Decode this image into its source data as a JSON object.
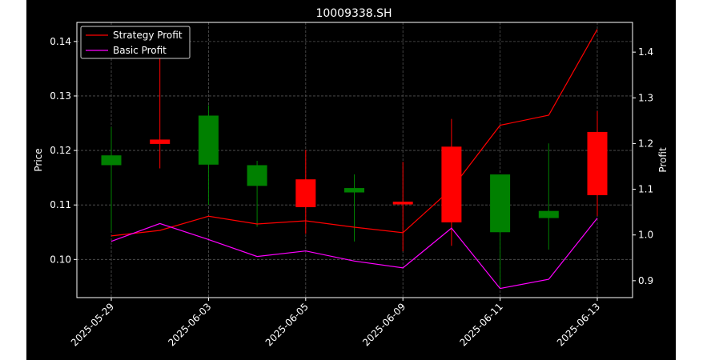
{
  "chart_data": {
    "type": "candlestick",
    "title": "10009338.SH",
    "xlabel": "",
    "ylabel": "Price",
    "y2label": "Profit",
    "ylim": [
      0.093,
      0.1435
    ],
    "y2lim": [
      0.863,
      1.465
    ],
    "yticks": [
      0.1,
      0.11,
      0.12,
      0.13,
      0.14
    ],
    "ytick_labels": [
      "0.10",
      "0.11",
      "0.12",
      "0.13",
      "0.14"
    ],
    "y2ticks": [
      0.9,
      1.0,
      1.1,
      1.2,
      1.3,
      1.4
    ],
    "y2tick_labels": [
      "0.9",
      "1.0",
      "1.1",
      "1.2",
      "1.3",
      "1.4"
    ],
    "x_tick_labels": [
      "2025-05-29",
      "2025-06-03",
      "2025-06-05",
      "2025-06-09",
      "2025-06-11",
      "2025-06-13"
    ],
    "x_tick_indices": [
      0,
      2,
      4,
      6,
      8,
      10
    ],
    "grid": true,
    "legend_position": "top-left",
    "up_color": "#008000",
    "down_color": "#ff0000",
    "candles": [
      {
        "open": 0.1173,
        "high": 0.1243,
        "low": 0.1052,
        "close": 0.1191
      },
      {
        "open": 0.122,
        "high": 0.1375,
        "low": 0.1167,
        "close": 0.1212
      },
      {
        "open": 0.1174,
        "high": 0.1283,
        "low": 0.11,
        "close": 0.1264
      },
      {
        "open": 0.1135,
        "high": 0.1181,
        "low": 0.106,
        "close": 0.1173
      },
      {
        "open": 0.1147,
        "high": 0.1201,
        "low": 0.1047,
        "close": 0.1096
      },
      {
        "open": 0.1123,
        "high": 0.1156,
        "low": 0.1033,
        "close": 0.1131
      },
      {
        "open": 0.1106,
        "high": 0.1179,
        "low": 0.1015,
        "close": 0.1101
      },
      {
        "open": 0.1207,
        "high": 0.1258,
        "low": 0.1025,
        "close": 0.1068
      },
      {
        "open": 0.105,
        "high": 0.1156,
        "low": 0.095,
        "close": 0.1156
      },
      {
        "open": 0.1076,
        "high": 0.1213,
        "low": 0.1018,
        "close": 0.1089
      },
      {
        "open": 0.1234,
        "high": 0.1272,
        "low": 0.108,
        "close": 0.1118
      }
    ],
    "series": [
      {
        "name": "Strategy Profit",
        "color": "#ff0000",
        "axis": "right",
        "values": [
          0.998,
          1.01,
          1.041,
          1.024,
          1.031,
          1.017,
          1.005,
          1.101,
          1.24,
          1.262,
          1.45
        ]
      },
      {
        "name": "Basic Profit",
        "color": "#ff00ff",
        "axis": "right",
        "values": [
          0.986,
          1.025,
          0.99,
          0.953,
          0.965,
          0.943,
          0.928,
          1.015,
          0.883,
          0.903,
          1.037
        ]
      }
    ]
  }
}
